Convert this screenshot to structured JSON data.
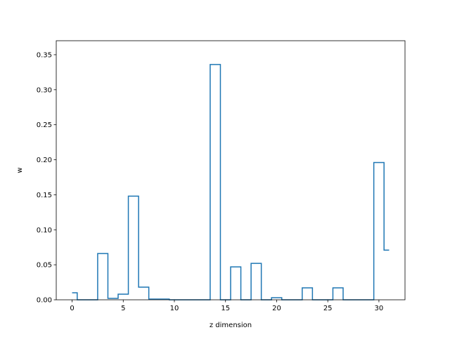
{
  "chart_data": {
    "type": "line",
    "drawstyle": "steps-mid",
    "title": "",
    "xlabel": "z dimension",
    "ylabel": "w",
    "xlim": [
      -1.55,
      32.55
    ],
    "ylim": [
      0,
      0.37
    ],
    "xticks": [
      0,
      5,
      10,
      15,
      20,
      25,
      30
    ],
    "yticks": [
      0.0,
      0.05,
      0.1,
      0.15,
      0.2,
      0.25,
      0.3,
      0.35
    ],
    "ytick_labels": [
      "0.00",
      "0.05",
      "0.10",
      "0.15",
      "0.20",
      "0.25",
      "0.30",
      "0.35"
    ],
    "grid": false,
    "line_color": "#1f77b4",
    "series": [
      {
        "x": [
          0,
          1,
          2,
          3,
          4,
          5,
          6,
          7,
          8,
          9,
          10,
          11,
          12,
          13,
          14,
          15,
          16,
          17,
          18,
          19,
          20,
          21,
          22,
          23,
          24,
          25,
          26,
          27,
          28,
          29,
          30,
          31
        ],
        "values": [
          0.01,
          0.0,
          0.0,
          0.066,
          0.002,
          0.008,
          0.148,
          0.018,
          0.001,
          0.001,
          0.0,
          0.0,
          0.0,
          0.0,
          0.336,
          0.0,
          0.047,
          0.0,
          0.052,
          0.0,
          0.003,
          0.0,
          0.0,
          0.017,
          0.0,
          0.0,
          0.017,
          0.0,
          0.0,
          0.0,
          0.196,
          0.071
        ]
      }
    ]
  }
}
